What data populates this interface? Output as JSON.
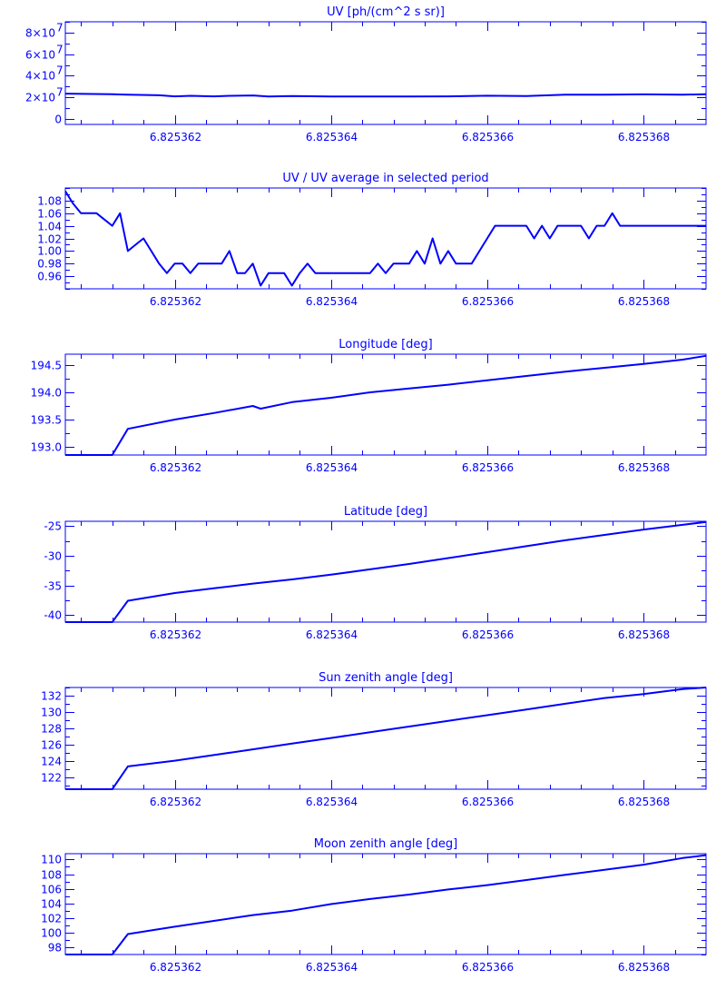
{
  "chart_data": [
    {
      "type": "line",
      "title": "UV [ph/(cm^2 s sr)]",
      "xlabel": "",
      "ylabel": "",
      "xlim": [
        6.8253606,
        6.8253688
      ],
      "x_ticks": [
        6.825362,
        6.825364,
        6.825366,
        6.825368
      ],
      "x_tick_labels": [
        "6.825362",
        "6.825364",
        "6.825366",
        "6.825368"
      ],
      "ylim": [
        -5000000,
        90000000
      ],
      "y_ticks": [
        0,
        20000000,
        40000000,
        60000000,
        80000000
      ],
      "y_tick_labels": [
        "0",
        "2×10",
        "4×10",
        "6×10",
        "8×10"
      ],
      "y_tick_exponents": [
        "",
        "7",
        "7",
        "7",
        "7"
      ],
      "series": [
        {
          "x": [
            6.8253606,
            6.8253612,
            6.8253614,
            6.8253618,
            6.825362,
            6.8253622,
            6.8253625,
            6.8253627,
            6.825363,
            6.8253632,
            6.8253635,
            6.825364,
            6.8253645,
            6.825365,
            6.8253655,
            6.825366,
            6.8253665,
            6.825367,
            6.8253675,
            6.825368,
            6.8253685,
            6.8253688
          ],
          "y": [
            23500000,
            23000000,
            22500000,
            22000000,
            21000000,
            21500000,
            21000000,
            21500000,
            21800000,
            20800000,
            21300000,
            20800000,
            20800000,
            20800000,
            21000000,
            21600000,
            21200000,
            22500000,
            22600000,
            22800000,
            22500000,
            23000000
          ]
        }
      ]
    },
    {
      "type": "line",
      "title": "UV / UV average in selected period",
      "xlabel": "",
      "ylabel": "",
      "xlim": [
        6.8253606,
        6.8253688
      ],
      "x_ticks": [
        6.825362,
        6.825364,
        6.825366,
        6.825368
      ],
      "x_tick_labels": [
        "6.825362",
        "6.825364",
        "6.825366",
        "6.825368"
      ],
      "ylim": [
        0.94,
        1.1
      ],
      "y_ticks": [
        0.96,
        0.98,
        1.0,
        1.02,
        1.04,
        1.06,
        1.08
      ],
      "y_tick_labels": [
        "0.96",
        "0.98",
        "1.00",
        "1.02",
        "1.04",
        "1.06",
        "1.08"
      ],
      "series": [
        {
          "x": [
            6.8253606,
            6.8253607,
            6.8253608,
            6.8253609,
            6.825361,
            6.8253611,
            6.8253612,
            6.8253613,
            6.8253614,
            6.8253615,
            6.8253616,
            6.8253617,
            6.8253618,
            6.8253619,
            6.825362,
            6.8253621,
            6.8253622,
            6.8253623,
            6.8253624,
            6.8253625,
            6.8253626,
            6.8253627,
            6.8253628,
            6.8253629,
            6.825363,
            6.8253631,
            6.8253632,
            6.8253633,
            6.8253634,
            6.8253635,
            6.8253636,
            6.8253637,
            6.8253638,
            6.8253639,
            6.825364,
            6.8253641,
            6.8253642,
            6.8253643,
            6.8253644,
            6.8253645,
            6.8253646,
            6.8253647,
            6.8253648,
            6.8253649,
            6.825365,
            6.8253651,
            6.8253652,
            6.8253653,
            6.8253654,
            6.8253655,
            6.8253656,
            6.8253657,
            6.8253658,
            6.8253659,
            6.825366,
            6.8253661,
            6.8253662,
            6.8253663,
            6.8253664,
            6.8253665,
            6.8253666,
            6.8253667,
            6.8253668,
            6.8253669,
            6.825367,
            6.8253671,
            6.8253672,
            6.8253673,
            6.8253674,
            6.8253675,
            6.8253676,
            6.8253677,
            6.8253678,
            6.8253679,
            6.825368,
            6.8253681,
            6.8253682,
            6.8253683,
            6.8253684,
            6.8253685,
            6.8253686,
            6.8253687,
            6.8253688
          ],
          "y": [
            1.095,
            1.075,
            1.06,
            1.06,
            1.06,
            1.05,
            1.04,
            1.06,
            1.0,
            1.01,
            1.02,
            1.0,
            0.98,
            0.965,
            0.98,
            0.98,
            0.965,
            0.98,
            0.98,
            0.98,
            0.98,
            1.0,
            0.965,
            0.965,
            0.98,
            0.945,
            0.965,
            0.965,
            0.965,
            0.945,
            0.965,
            0.98,
            0.965,
            0.965,
            0.965,
            0.965,
            0.965,
            0.965,
            0.965,
            0.965,
            0.98,
            0.965,
            0.98,
            0.98,
            0.98,
            1.0,
            0.98,
            1.02,
            0.98,
            1.0,
            0.98,
            0.98,
            0.98,
            1.0,
            1.02,
            1.04,
            1.04,
            1.04,
            1.04,
            1.04,
            1.02,
            1.04,
            1.02,
            1.04,
            1.04,
            1.04,
            1.04,
            1.02,
            1.04,
            1.04,
            1.06,
            1.04,
            1.04,
            1.04,
            1.04,
            1.04,
            1.04,
            1.04,
            1.04,
            1.04,
            1.04,
            1.04,
            1.04
          ]
        }
      ]
    },
    {
      "type": "line",
      "title": "Longitude [deg]",
      "xlabel": "",
      "ylabel": "",
      "xlim": [
        6.8253606,
        6.8253688
      ],
      "x_ticks": [
        6.825362,
        6.825364,
        6.825366,
        6.825368
      ],
      "x_tick_labels": [
        "6.825362",
        "6.825364",
        "6.825366",
        "6.825368"
      ],
      "ylim": [
        192.85,
        194.7
      ],
      "y_ticks": [
        193.0,
        193.5,
        194.0,
        194.5
      ],
      "y_tick_labels": [
        "193.0",
        "193.5",
        "194.0",
        "194.5"
      ],
      "series": [
        {
          "x": [
            6.8253606,
            6.8253612,
            6.8253614,
            6.825362,
            6.8253625,
            6.825363,
            6.8253631,
            6.8253635,
            6.825364,
            6.8253645,
            6.825365,
            6.8253655,
            6.825366,
            6.8253665,
            6.825367,
            6.8253675,
            6.825368,
            6.8253685,
            6.8253688
          ],
          "y": [
            192.85,
            192.85,
            193.33,
            193.5,
            193.62,
            193.75,
            193.7,
            193.82,
            193.9,
            194.0,
            194.07,
            194.14,
            194.22,
            194.3,
            194.38,
            194.45,
            194.52,
            194.6,
            194.67
          ]
        }
      ]
    },
    {
      "type": "line",
      "title": "Latitude [deg]",
      "xlabel": "",
      "ylabel": "",
      "xlim": [
        6.8253606,
        6.8253688
      ],
      "x_ticks": [
        6.825362,
        6.825364,
        6.825366,
        6.825368
      ],
      "x_tick_labels": [
        "6.825362",
        "6.825364",
        "6.825366",
        "6.825368"
      ],
      "ylim": [
        -41.2,
        -24.2
      ],
      "y_ticks": [
        -40,
        -35,
        -30,
        -25
      ],
      "y_tick_labels": [
        "-40",
        "-35",
        "-30",
        "-25"
      ],
      "series": [
        {
          "x": [
            6.8253606,
            6.8253612,
            6.8253614,
            6.825362,
            6.8253625,
            6.825363,
            6.8253635,
            6.825364,
            6.8253645,
            6.825365,
            6.8253655,
            6.825366,
            6.8253665,
            6.825367,
            6.8253675,
            6.825368,
            6.8253685,
            6.8253688
          ],
          "y": [
            -41.2,
            -41.2,
            -37.6,
            -36.3,
            -35.5,
            -34.7,
            -34.0,
            -33.2,
            -32.3,
            -31.4,
            -30.4,
            -29.4,
            -28.4,
            -27.4,
            -26.5,
            -25.6,
            -24.8,
            -24.3
          ]
        }
      ]
    },
    {
      "type": "line",
      "title": "Sun zenith angle [deg]",
      "xlabel": "",
      "ylabel": "",
      "xlim": [
        6.8253606,
        6.8253688
      ],
      "x_ticks": [
        6.825362,
        6.825364,
        6.825366,
        6.825368
      ],
      "x_tick_labels": [
        "6.825362",
        "6.825364",
        "6.825366",
        "6.825368"
      ],
      "ylim": [
        120.5,
        133
      ],
      "y_ticks": [
        122,
        124,
        126,
        128,
        130,
        132
      ],
      "y_tick_labels": [
        "122",
        "124",
        "126",
        "128",
        "130",
        "132"
      ],
      "series": [
        {
          "x": [
            6.8253606,
            6.8253612,
            6.8253614,
            6.825362,
            6.8253625,
            6.825363,
            6.8253635,
            6.825364,
            6.8253645,
            6.825365,
            6.8253655,
            6.825366,
            6.8253665,
            6.825367,
            6.8253675,
            6.825368,
            6.8253685,
            6.8253688
          ],
          "y": [
            120.5,
            120.5,
            123.3,
            124.0,
            124.7,
            125.4,
            126.1,
            126.8,
            127.5,
            128.2,
            128.9,
            129.6,
            130.3,
            131.0,
            131.7,
            132.2,
            132.8,
            133.0
          ]
        }
      ]
    },
    {
      "type": "line",
      "title": "Moon zenith angle [deg]",
      "xlabel": "",
      "ylabel": "",
      "xlim": [
        6.8253606,
        6.8253688
      ],
      "x_ticks": [
        6.825362,
        6.825364,
        6.825366,
        6.825368
      ],
      "x_tick_labels": [
        "6.825362",
        "6.825364",
        "6.825366",
        "6.825368"
      ],
      "ylim": [
        97,
        110.8
      ],
      "y_ticks": [
        98,
        100,
        102,
        104,
        106,
        108,
        110
      ],
      "y_tick_labels": [
        "98",
        "100",
        "102",
        "104",
        "106",
        "108",
        "110"
      ],
      "series": [
        {
          "x": [
            6.8253606,
            6.8253612,
            6.8253614,
            6.825362,
            6.8253625,
            6.825363,
            6.8253635,
            6.825364,
            6.8253645,
            6.825365,
            6.8253655,
            6.825366,
            6.8253665,
            6.825367,
            6.8253675,
            6.825368,
            6.8253685,
            6.8253688
          ],
          "y": [
            97,
            97,
            99.8,
            100.8,
            101.6,
            102.4,
            103.0,
            103.9,
            104.6,
            105.2,
            105.9,
            106.5,
            107.2,
            107.9,
            108.6,
            109.3,
            110.2,
            110.6
          ]
        }
      ]
    }
  ]
}
